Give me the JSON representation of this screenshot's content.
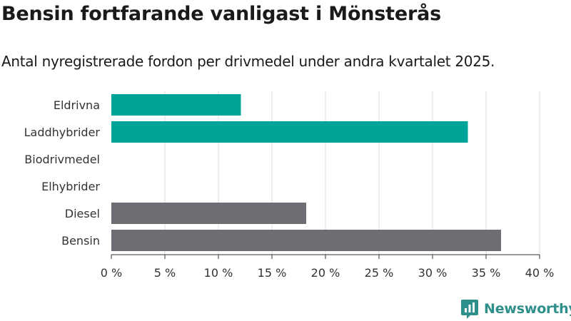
{
  "header": {
    "title": "Bensin fortfarande vanligast i Mönsterås",
    "subtitle": "Antal nyregistrerade fordon per drivmedel under andra kvartalet 2025."
  },
  "brand": {
    "name": "Newsworthy",
    "color": "#2f8f8a"
  },
  "chart_data": {
    "type": "bar",
    "orientation": "horizontal",
    "categories": [
      "Eldrivna",
      "Laddhybrider",
      "Biodrivmedel",
      "Elhybrider",
      "Diesel",
      "Bensin"
    ],
    "values": [
      12.1,
      33.3,
      0,
      0,
      18.2,
      36.4
    ],
    "colors": [
      "#00a398",
      "#00a398",
      "#00a398",
      "#00a398",
      "#6e6d74",
      "#6e6d74"
    ],
    "xlim": [
      0,
      40
    ],
    "xticks": [
      0,
      5,
      10,
      15,
      20,
      25,
      30,
      35,
      40
    ],
    "tick_labels": [
      "0 %",
      "5 %",
      "10 %",
      "15 %",
      "20 %",
      "25 %",
      "30 %",
      "35 %",
      "40 %"
    ],
    "grid": true
  }
}
